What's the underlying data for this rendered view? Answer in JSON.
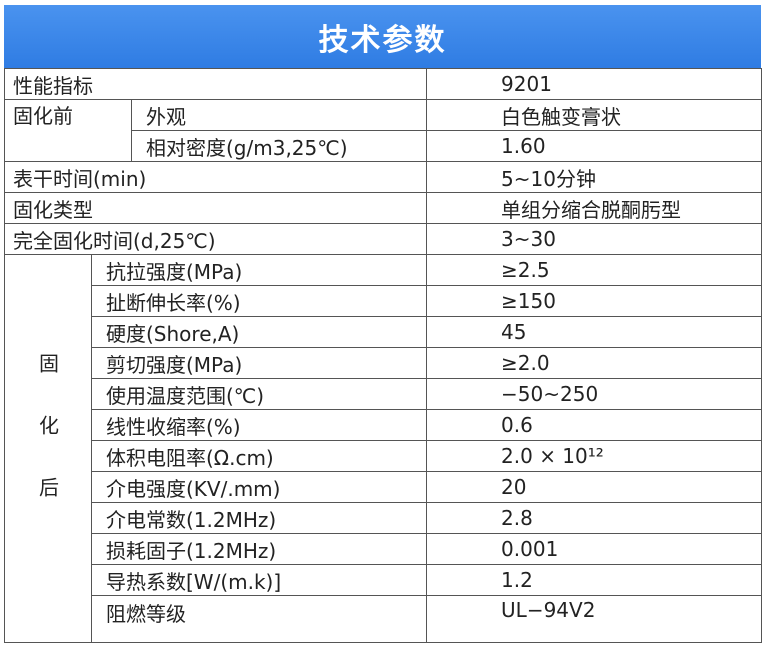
{
  "header": {
    "title": "技术参数"
  },
  "table": {
    "top_rows": [
      [
        "性能指标",
        "9201"
      ]
    ],
    "before_cure": {
      "label": "固化前",
      "rows": [
        [
          "外观",
          "白色触变膏状"
        ],
        [
          "相对密度(g/m3,25℃)",
          "1.60"
        ]
      ]
    },
    "middle_rows": [
      [
        "表干时间(min)",
        "5~10分钟"
      ],
      [
        "固化类型",
        "单组分缩合脱酮肟型"
      ],
      [
        "完全固化时间(d,25℃)",
        "3~30"
      ]
    ],
    "after_cure": {
      "label": "固化后",
      "rows": [
        [
          "抗拉强度(MPa)",
          "≥2.5"
        ],
        [
          "扯断伸长率(%)",
          "≥150"
        ],
        [
          "硬度(Shore,A)",
          "45"
        ],
        [
          "剪切强度(MPa)",
          "≥2.0"
        ],
        [
          "使用温度范围(℃)",
          "−50~250"
        ],
        [
          "线性收缩率(%)",
          "0.6"
        ],
        [
          "体积电阻率(Ω.cm)",
          "2.0 × 10¹²"
        ],
        [
          "介电强度(KV/.mm)",
          "20"
        ],
        [
          "介电常数(1.2MHz)",
          "2.8"
        ],
        [
          "损耗固子(1.2MHz)",
          "0.001"
        ],
        [
          "导热系数[W/(m.k)]",
          "1.2"
        ],
        [
          "阻燃等级",
          "UL−94V2"
        ]
      ]
    }
  }
}
